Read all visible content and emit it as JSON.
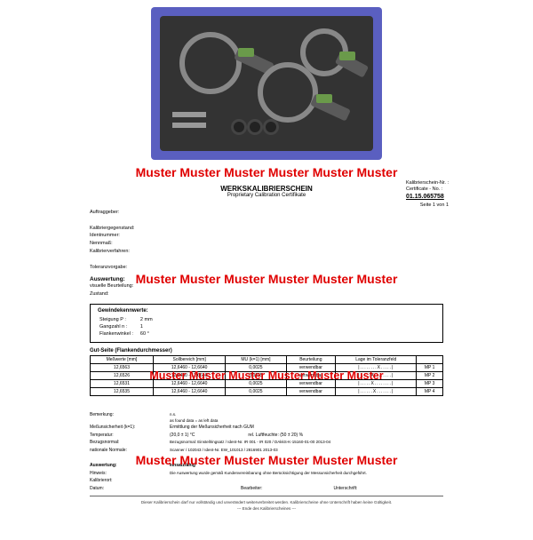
{
  "banner_text": "Muster Muster Muster Muster Muster Muster",
  "banner_text2": "Muster Muster  Muster Muster Muster Muster",
  "banner_color": "#e00000",
  "doc": {
    "title": "WERKSKALIBRIERSCHEIN",
    "subtitle": "Proprietary Calibration Certifikate",
    "cert_label": "Kalibrierschein-Nr. :",
    "cert_label2": "Certificate - No. :",
    "cert_no": "01.15.065758",
    "page_of": "Seite 1 von 1",
    "fields": {
      "auftraggeber": "Auftraggeber:",
      "kalibriergegenstand": "Kalibriergegenstand:",
      "identnummer": "Identnummer:",
      "nennmass": "Nennmaß:",
      "kalibrierverfahren": "Kalibrierverfahren:",
      "toleranzvorgabe": "Toleranzvorgabe:"
    },
    "auswertung_head": "Auswertung:",
    "visuelle": "visuelle Beurteilung:",
    "zustand": "Zustand:",
    "gewinde": {
      "title": "Gewindekennwerte:",
      "steigung_lbl": "Steigung P :",
      "steigung_val": "2 mm",
      "gangzahl_lbl": "Gangzahl n :",
      "gangzahl_val": "1",
      "flankenwinkel_lbl": "Flankenwinkel :",
      "flankenwinkel_val": "60 °"
    },
    "gut_title": "Gut-Seite (Flankendurchmesser)",
    "table": {
      "headers": [
        "Meßwerte [mm]",
        "Sollbereich [mm]",
        "MU (k=1) [mm]",
        "Beurteilung",
        "Lage im Toleranzfeld",
        ""
      ],
      "rows": [
        [
          "12,6563",
          "12,6460 - 12,6640",
          "0,0025",
          "verwendbar",
          "|........X.....|",
          "MP 1"
        ],
        [
          "12,6526",
          "12,6460 - 12,6640",
          "0,0025",
          "verwendbar",
          "|.....X........|",
          "MP 2"
        ],
        [
          "12,6531",
          "12,6460 - 12,6640",
          "0,0025",
          "verwendbar",
          "|.....X........|",
          "MP 3"
        ],
        [
          "12,6535",
          "12,6460 - 12,6640",
          "0,0025",
          "verwendbar",
          "|......X.......|",
          "MP 4"
        ]
      ]
    },
    "remarks": {
      "bemerkung_lbl": "Bemerkung:",
      "bemerkung_val": "n.s.\nas found data = as left data",
      "mu_lbl": "Meßunsicherheit (k=1):",
      "mu_val": "Ermittlung der Meßunsicherheit nach GUM",
      "temp_lbl": "Temperatur:",
      "temp_val": "(20,0 ± 1) °C",
      "luft_lbl": "rel. Luftfeuchte:",
      "luft_val": "(50 ± 20) %",
      "bezug_lbl": "Bezugsnormal:",
      "bezug_val": "Bezugsnormal: Einstellringsatz / Ident-Nr. IR 001 - IR 020 / DAkkS-K-15160-01-00 2013-04",
      "nat_lbl": "nationale Normale:",
      "nat_val": "Scanner / 102043 / Ident-Nr. EW_101013 / 2816901 2013-03"
    },
    "final": {
      "auswertung_lbl": "Auswertung:",
      "auswertung_val": "einsatzfähig",
      "hinweis_lbl": "Hinweis:",
      "hinweis_val": "Die Auswertung wurde gemäß Kundenvereinbarung ohne Berücksichtigung der Messunsicherheit durchgeführt.",
      "kalibrierort_lbl": "Kalibrierort:",
      "datum_lbl": "Datum:",
      "bearbeiter_lbl": "Bearbeiter:",
      "unterschrift_lbl": "Unterschrift:"
    },
    "disclaimer": "Dieser Kalibrierschein darf nur vollständig und unverändert weiterverbreitet werden. Kalibrierscheine ohne Unterschrift haben keine Gültigkeit.",
    "disclaimer2": "--- Ende des Kalibrierscheines ---"
  }
}
